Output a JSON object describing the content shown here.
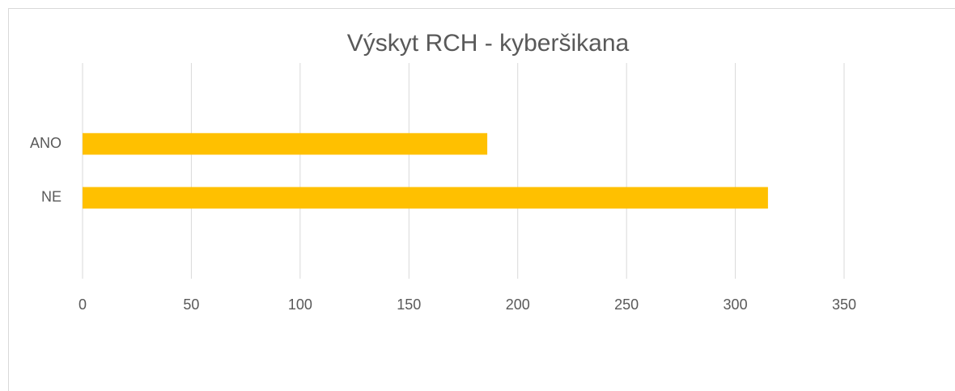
{
  "chart_data": {
    "type": "bar",
    "orientation": "horizontal",
    "title": "Výskyt RCH - kyberšikana",
    "categories": [
      null,
      "ANO",
      "NE",
      null
    ],
    "values": [
      null,
      186,
      315,
      null
    ],
    "color": "#ffc000",
    "xlim": [
      0,
      350
    ],
    "xticks": [
      0,
      50,
      100,
      150,
      200,
      250,
      300,
      350
    ],
    "grid": true
  }
}
